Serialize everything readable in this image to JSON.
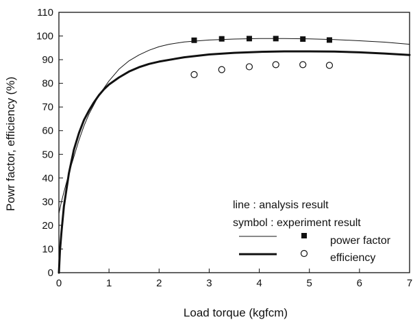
{
  "chart_data": {
    "type": "line",
    "title": "",
    "xlabel": "Load torque (kgfcm)",
    "ylabel": "Powr factor, efficiency (%)",
    "xlim": [
      0,
      7
    ],
    "ylim": [
      0,
      110
    ],
    "xticks": [
      "0",
      "1",
      "2",
      "3",
      "4",
      "5",
      "6",
      "7"
    ],
    "yticks": [
      "0",
      "10",
      "20",
      "30",
      "40",
      "50",
      "60",
      "70",
      "80",
      "90",
      "100",
      "110"
    ],
    "grid": false,
    "legend": {
      "placement": "bottom-right",
      "line_caption": "line : analysis result",
      "symbol_caption": "symbol : experiment result",
      "entries": [
        "power factor",
        "efficiency"
      ]
    },
    "series": [
      {
        "name": "power factor",
        "kind": "analysis",
        "style": "thin-line",
        "color": "#111111",
        "x": [
          0,
          0.05,
          0.1,
          0.2,
          0.3,
          0.4,
          0.5,
          0.6,
          0.7,
          0.8,
          0.9,
          1.0,
          1.2,
          1.4,
          1.6,
          1.8,
          2.0,
          2.2,
          2.5,
          2.8,
          3.0,
          3.5,
          4.0,
          4.5,
          5.0,
          5.5,
          6.0,
          6.5,
          7.0
        ],
        "y": [
          25,
          30,
          34,
          42,
          49,
          56,
          62,
          67,
          71,
          75,
          78,
          81,
          86,
          89.5,
          92,
          94,
          95.5,
          96.5,
          97.5,
          98,
          98.3,
          98.7,
          98.9,
          98.9,
          98.8,
          98.5,
          98,
          97.4,
          96.5
        ]
      },
      {
        "name": "efficiency",
        "kind": "analysis",
        "style": "thick-line",
        "color": "#111111",
        "x": [
          0,
          0.02,
          0.05,
          0.1,
          0.2,
          0.3,
          0.4,
          0.5,
          0.6,
          0.7,
          0.8,
          0.9,
          1.0,
          1.2,
          1.4,
          1.6,
          1.8,
          2.0,
          2.5,
          3.0,
          3.5,
          4.0,
          4.5,
          5.0,
          5.5,
          6.0,
          6.5,
          7.0
        ],
        "y": [
          0,
          9,
          17,
          28,
          42,
          52,
          59,
          64.5,
          68.5,
          72,
          75,
          77.5,
          79.5,
          82.5,
          85,
          86.8,
          88.2,
          89.2,
          91,
          92.2,
          92.9,
          93.3,
          93.5,
          93.5,
          93.4,
          93.1,
          92.6,
          92
        ]
      },
      {
        "name": "power factor",
        "kind": "experiment",
        "marker": "filled-square",
        "color": "#111111",
        "x": [
          2.7,
          3.25,
          3.8,
          4.33,
          4.87,
          5.4
        ],
        "y": [
          98.2,
          98.8,
          98.9,
          98.9,
          98.7,
          98.3
        ]
      },
      {
        "name": "efficiency",
        "kind": "experiment",
        "marker": "open-circle",
        "color": "#111111",
        "x": [
          2.7,
          3.25,
          3.8,
          4.33,
          4.87,
          5.4
        ],
        "y": [
          83.7,
          85.8,
          87.0,
          87.9,
          87.9,
          87.6
        ]
      }
    ]
  }
}
